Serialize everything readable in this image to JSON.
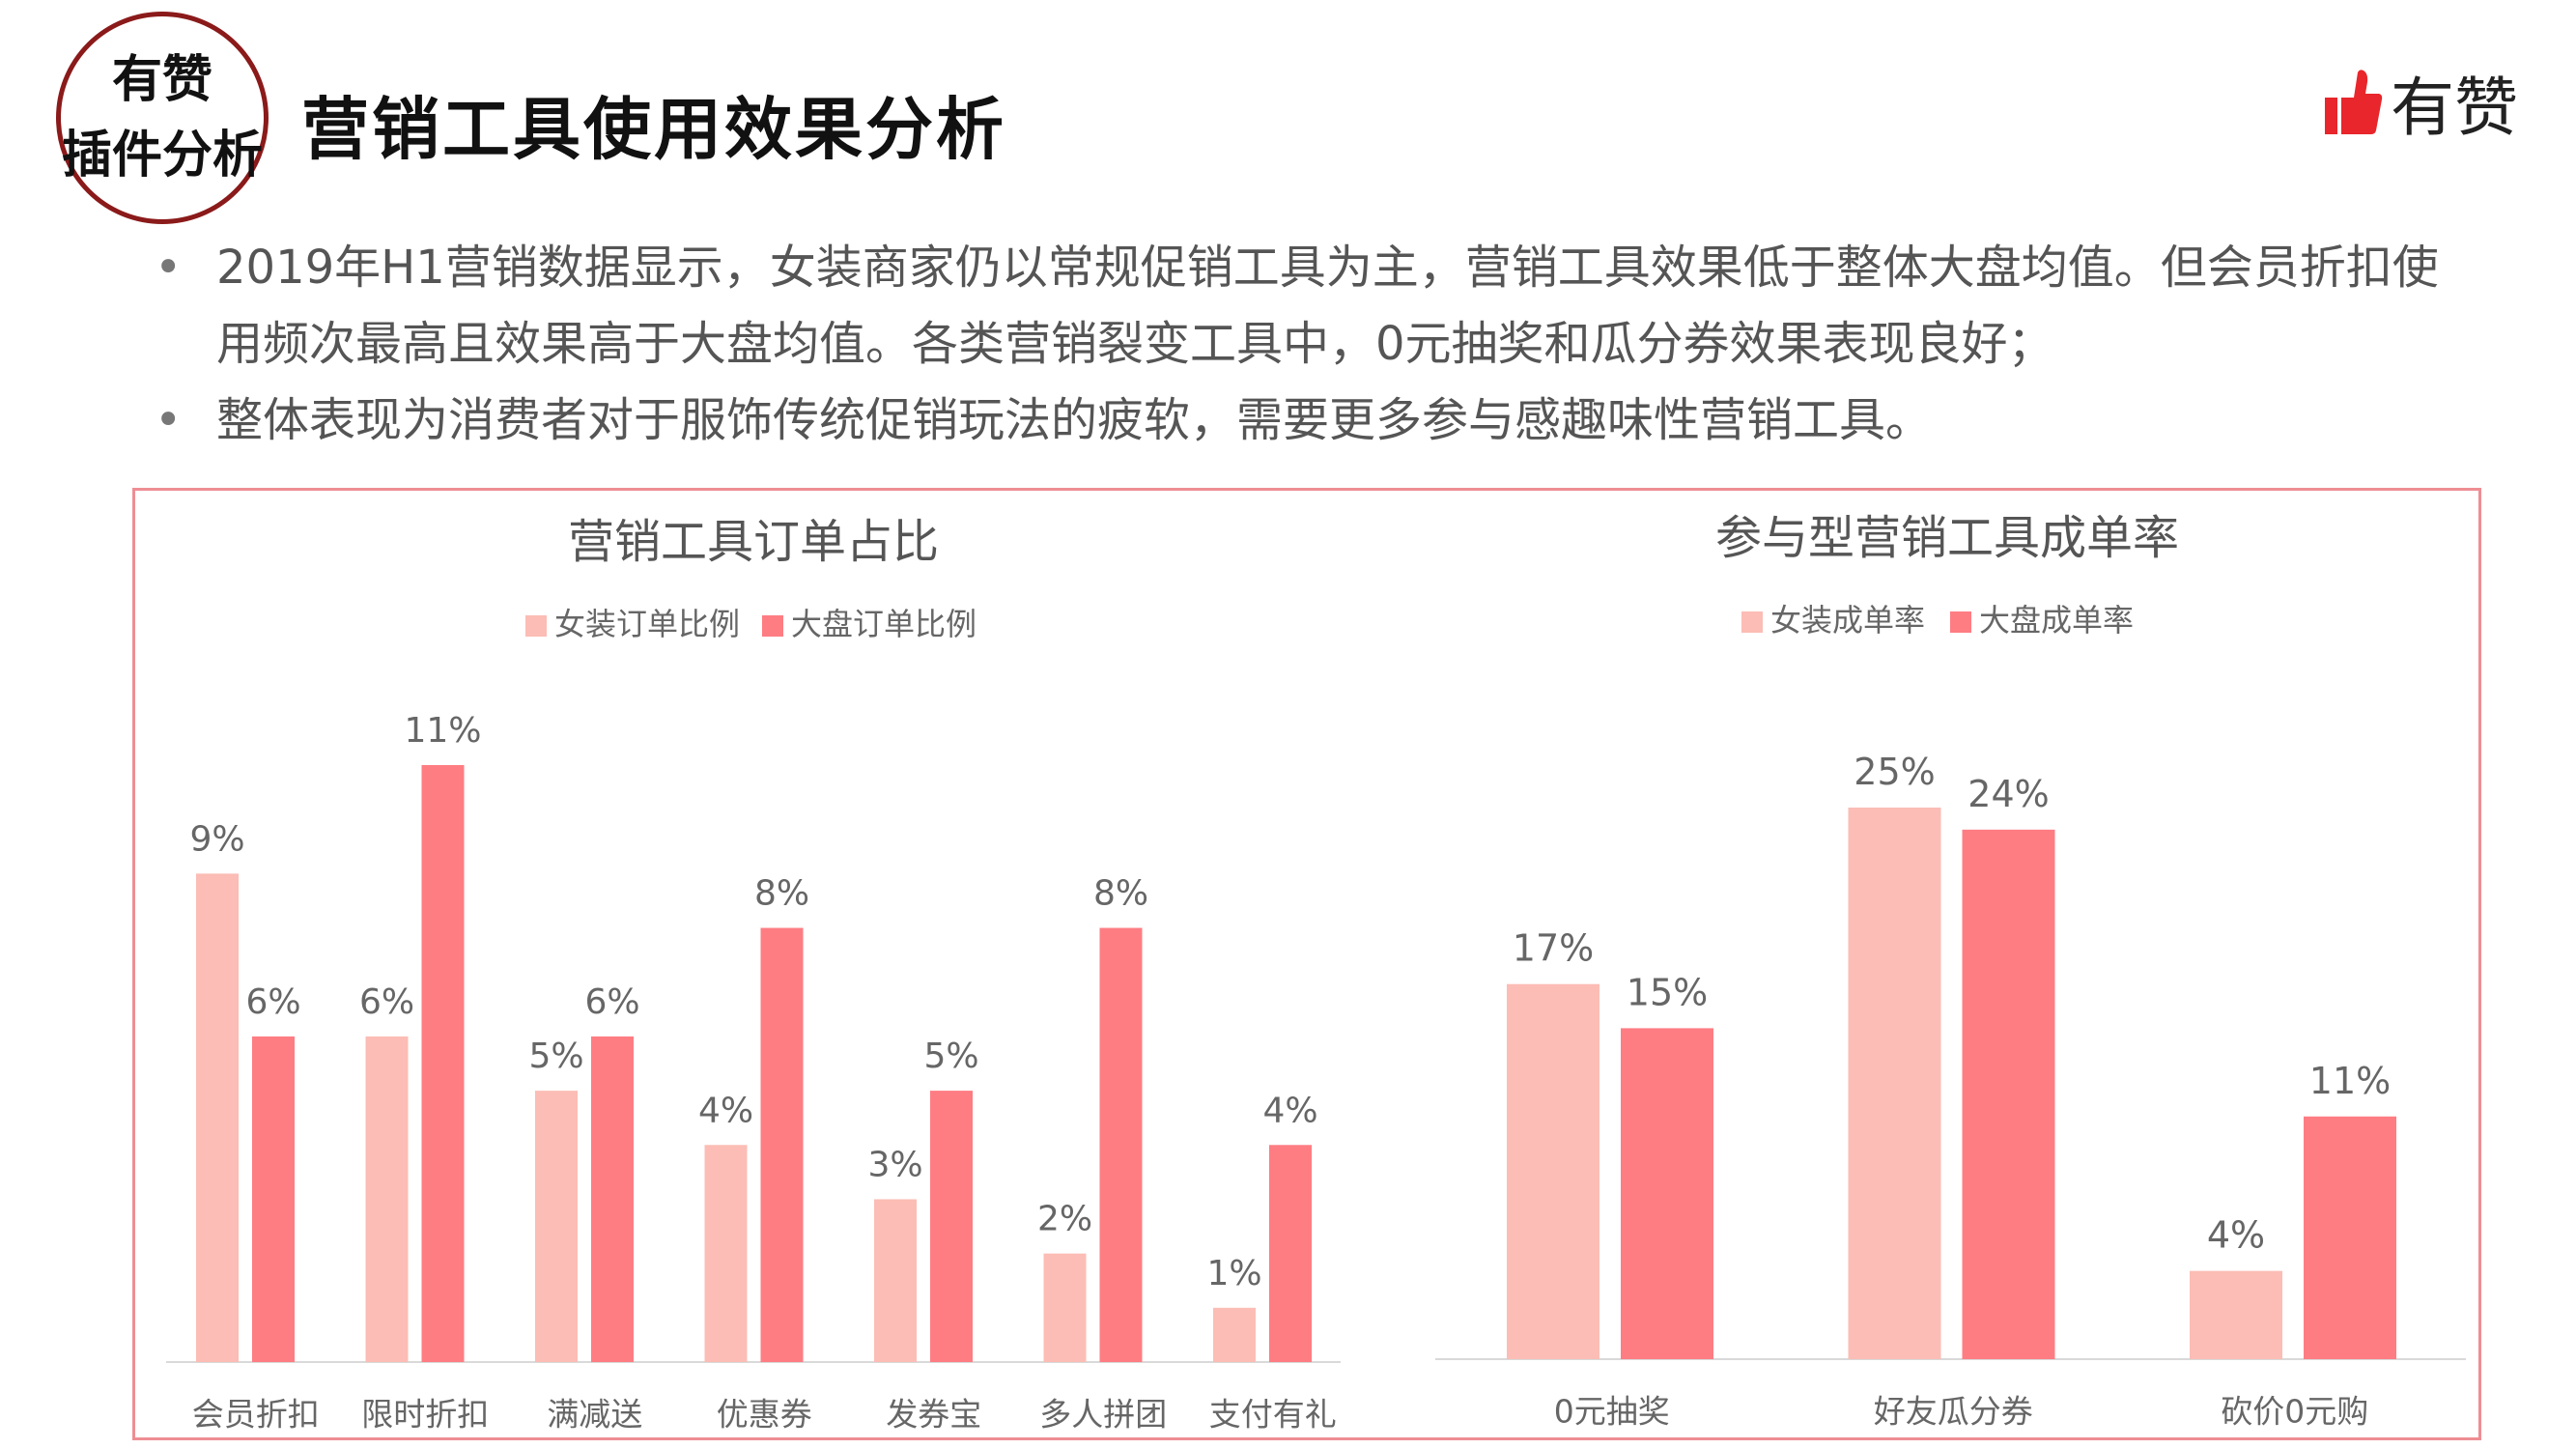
{
  "badge": {
    "line1": "有赞",
    "line2": "插件分析"
  },
  "page_title": "营销工具使用效果分析",
  "logo": {
    "text": "有赞"
  },
  "bullets": [
    "2019年H1营销数据显示，女装商家仍以常规促销工具为主，营销工具效果低于整体大盘均值。但会员折扣使用频次最高且效果高于大盘均值。各类营销裂变工具中，0元抽奖和瓜分券效果表现良好；",
    "整体表现为消费者对于服饰传统促销玩法的疲软，需要更多参与感趣味性营销工具。"
  ],
  "colors": {
    "light": "#fbbdb5",
    "dark": "#fe7d83",
    "badge_border": "#8b1a1a",
    "panel_border": "#ee8e94",
    "logo": "#e8262b"
  },
  "chart_data": [
    {
      "type": "bar",
      "title": "营销工具订单占比",
      "categories": [
        "会员折扣",
        "限时折扣",
        "满减送",
        "优惠券",
        "发券宝",
        "多人拼团",
        "支付有礼"
      ],
      "series": [
        {
          "name": "女装订单比例",
          "values": [
            9,
            6,
            5,
            4,
            3,
            2,
            1
          ],
          "labels": [
            "9%",
            "6%",
            "5%",
            "4%",
            "3%",
            "2%",
            "1%"
          ],
          "color": "#fbbdb5"
        },
        {
          "name": "大盘订单比例",
          "values": [
            6,
            11,
            6,
            8,
            5,
            8,
            4
          ],
          "labels": [
            "6%",
            "11%",
            "6%",
            "8%",
            "5%",
            "8%",
            "4%"
          ],
          "color": "#fe7d83"
        }
      ],
      "ylim": [
        0,
        11
      ],
      "grid": false,
      "legend": "top-center"
    },
    {
      "type": "bar",
      "title": "参与型营销工具成单率",
      "categories": [
        "0元抽奖",
        "好友瓜分券",
        "砍价0元购"
      ],
      "series": [
        {
          "name": "女装成单率",
          "values": [
            17,
            25,
            4
          ],
          "labels": [
            "17%",
            "25%",
            "4%"
          ],
          "color": "#fbbdb5"
        },
        {
          "name": "大盘成单率",
          "values": [
            15,
            24,
            11
          ],
          "labels": [
            "15%",
            "24%",
            "11%"
          ],
          "color": "#fe7d83"
        }
      ],
      "ylim": [
        0,
        25
      ],
      "grid": false,
      "legend": "top-center"
    }
  ]
}
